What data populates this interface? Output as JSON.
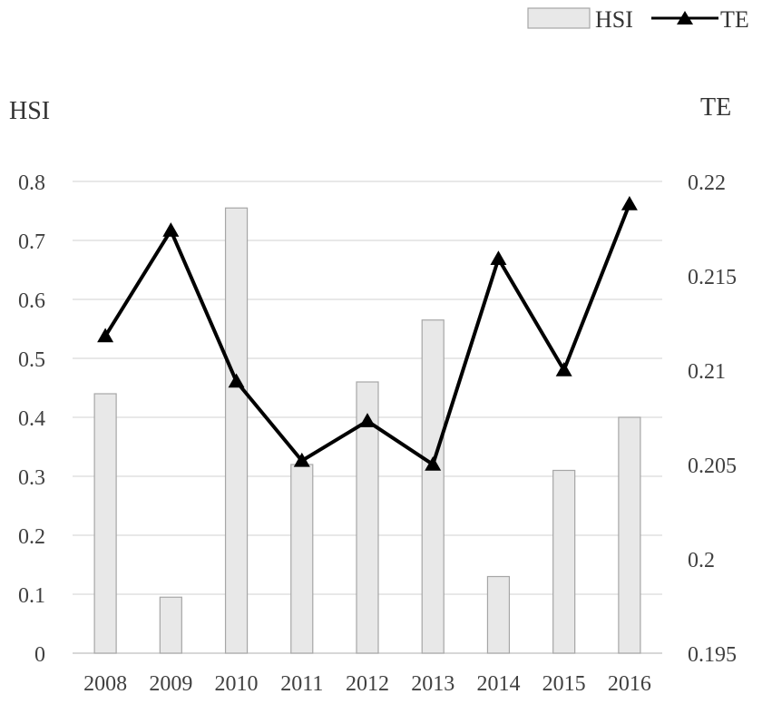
{
  "chart_data": {
    "type": "bar",
    "categories": [
      "2008",
      "2009",
      "2010",
      "2011",
      "2012",
      "2013",
      "2014",
      "2015",
      "2016"
    ],
    "series": [
      {
        "name": "HSI",
        "type": "bar",
        "axis": "left",
        "values": [
          0.44,
          0.095,
          0.755,
          0.32,
          0.46,
          0.565,
          0.13,
          0.31,
          0.4
        ],
        "color": "#e8e8e8",
        "stroke": "#a6a6a6"
      },
      {
        "name": "TE",
        "type": "line",
        "axis": "right",
        "marker": "triangle",
        "values": [
          0.2118,
          0.2174,
          0.2094,
          0.2052,
          0.2073,
          0.205,
          0.2159,
          0.21,
          0.2188
        ],
        "color": "#000000"
      }
    ],
    "ylabel_left": "HSI",
    "ylabel_right": "TE",
    "ylim_left": [
      0,
      0.8
    ],
    "yticks_left": [
      "0",
      "0.1",
      "0.2",
      "0.3",
      "0.4",
      "0.5",
      "0.6",
      "0.7",
      "0.8"
    ],
    "ylim_right": [
      0.195,
      0.22
    ],
    "yticks_right": [
      "0.195",
      "0.2",
      "0.205",
      "0.21",
      "0.215",
      "0.22"
    ],
    "grid": true,
    "legend": {
      "position": "top-right",
      "entries": [
        "HSI",
        "TE"
      ]
    }
  }
}
